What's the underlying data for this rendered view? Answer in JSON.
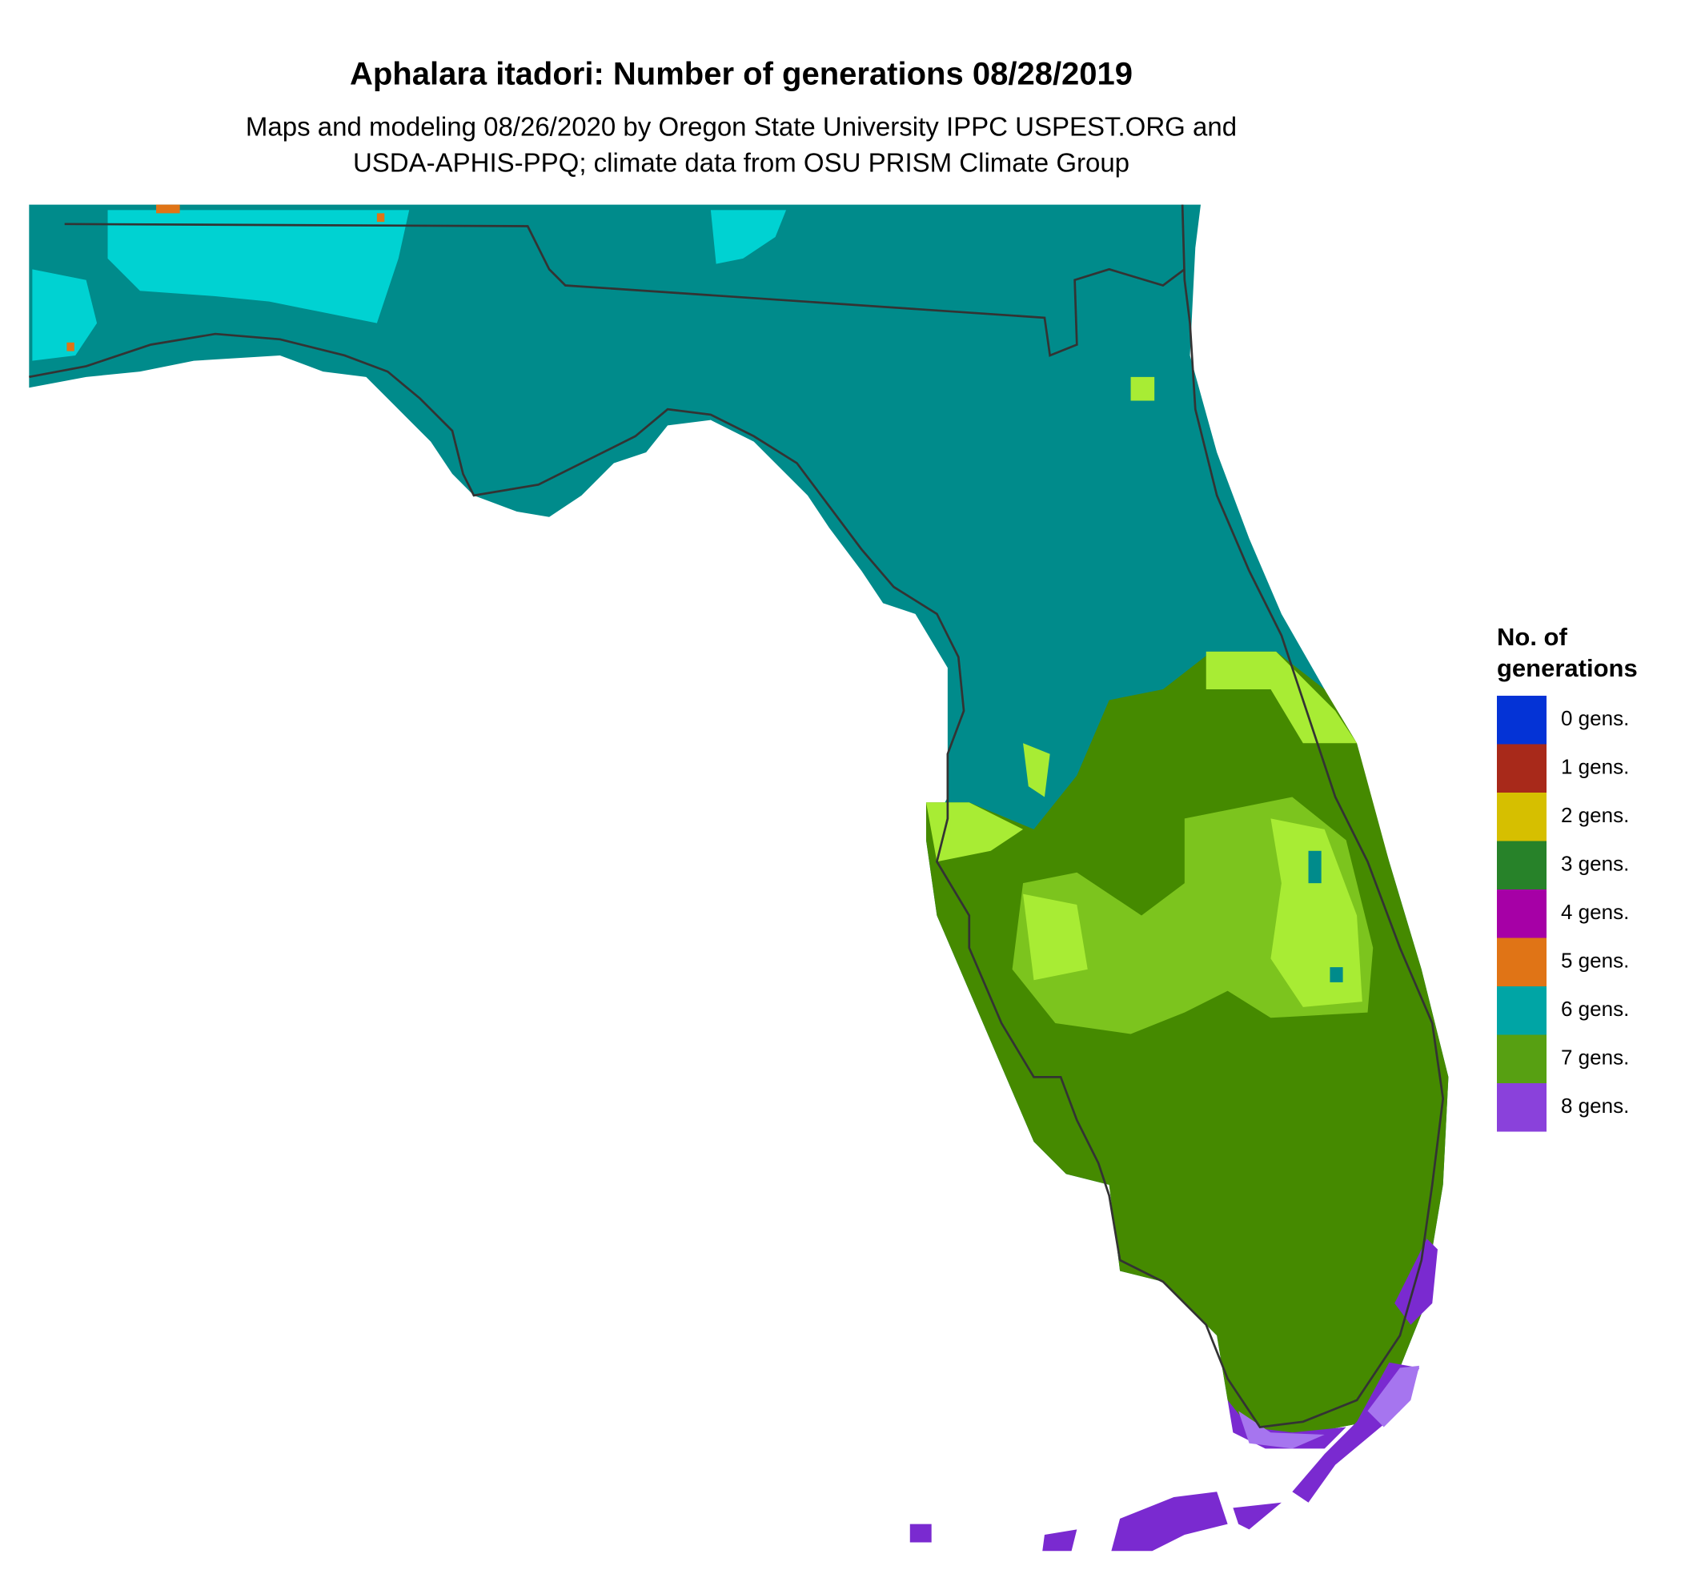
{
  "header": {
    "title": "Aphalara itadori: Number of generations 08/28/2019",
    "subtitle": [
      "Maps and modeling 08/26/2020 by Oregon State University IPPC USPEST.ORG and",
      "USDA-APHIS-PPQ; climate data from OSU PRISM Climate Group"
    ]
  },
  "legend": {
    "title": [
      "No. of",
      "generations"
    ],
    "items": [
      {
        "label": "0 gens.",
        "color": "#0433d6"
      },
      {
        "label": "1 gens.",
        "color": "#a8291a"
      },
      {
        "label": "2 gens.",
        "color": "#d6bf00"
      },
      {
        "label": "3 gens.",
        "color": "#278229"
      },
      {
        "label": "4 gens.",
        "color": "#a600a6"
      },
      {
        "label": "5 gens.",
        "color": "#e07416"
      },
      {
        "label": "6 gens.",
        "color": "#00a5a5"
      },
      {
        "label": "7 gens.",
        "color": "#57a012"
      },
      {
        "label": "8 gens.",
        "color": "#8a41db"
      }
    ]
  }
}
